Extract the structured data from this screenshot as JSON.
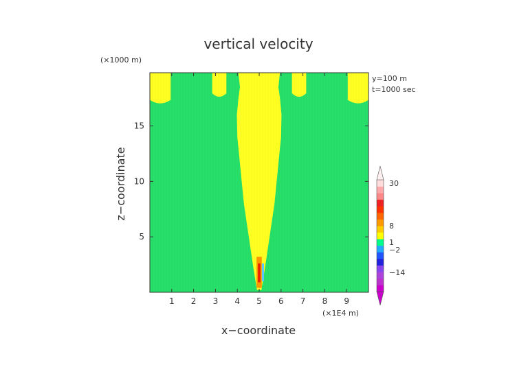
{
  "chart_data": {
    "type": "heatmap",
    "title": "vertical velocity",
    "xlabel": "x−coordinate",
    "ylabel": "z−coordinate",
    "x_unit": "(×1E4 m)",
    "y_unit": "(×1000 m)",
    "annotation_lines": [
      "y=100 m",
      "t=1000 sec"
    ],
    "xlim": [
      0,
      10
    ],
    "ylim": [
      0,
      19.8
    ],
    "x_ticks": [
      1,
      2,
      3,
      4,
      5,
      6,
      7,
      8,
      9
    ],
    "y_ticks": [
      5,
      10,
      15
    ],
    "colors": {
      "background_field": "#27e06a",
      "positive_region": "#ffff22",
      "core_orange": "#ff9900",
      "core_red": "#ee2200",
      "core_cyan": "#5fc8ff"
    },
    "regions": [
      {
        "value_class": "0 to 1",
        "shape": "plume",
        "center_x": 5.0,
        "profile": [
          [
            0.2,
            0.1
          ],
          [
            2.0,
            0.25
          ],
          [
            4.0,
            0.4
          ],
          [
            6.0,
            0.55
          ],
          [
            8.0,
            0.7
          ],
          [
            10.0,
            0.8
          ],
          [
            12.0,
            0.9
          ],
          [
            14.0,
            1.0
          ],
          [
            16.0,
            1.02
          ],
          [
            17.5,
            0.95
          ],
          [
            18.5,
            0.88
          ],
          [
            19.8,
            0.95
          ]
        ]
      },
      {
        "value_class": "0 to 1",
        "shape": "top-cell",
        "x_range": [
          0.0,
          0.95
        ],
        "z_bottom": 17.1
      },
      {
        "value_class": "0 to 1",
        "shape": "top-cell",
        "x_range": [
          2.85,
          3.5
        ],
        "z_bottom": 17.7
      },
      {
        "value_class": "0 to 1",
        "shape": "top-cell",
        "x_range": [
          6.5,
          7.15
        ],
        "z_bottom": 17.7
      },
      {
        "value_class": "0 to 1",
        "shape": "top-cell",
        "x_range": [
          9.05,
          10.0
        ],
        "z_bottom": 17.1
      }
    ],
    "colorbar": {
      "tick_labels": [
        "30",
        "8",
        "1",
        "−2",
        "−14"
      ],
      "levels": [
        {
          "color": "#cc00cc"
        },
        {
          "color": "#bb33cc"
        },
        {
          "color": "#aa44dd"
        },
        {
          "color": "#8844ee"
        },
        {
          "color": "#2222dd"
        },
        {
          "color": "#2255ff"
        },
        {
          "color": "#22aaff"
        },
        {
          "color": "#00ff88"
        },
        {
          "color": "#ffff00"
        },
        {
          "color": "#ffcc00"
        },
        {
          "color": "#ff9900"
        },
        {
          "color": "#ff6600"
        },
        {
          "color": "#ff3300"
        },
        {
          "color": "#ee2222"
        },
        {
          "color": "#ff8888"
        },
        {
          "color": "#ffaaaa"
        },
        {
          "color": "#ffdddd"
        }
      ]
    }
  }
}
